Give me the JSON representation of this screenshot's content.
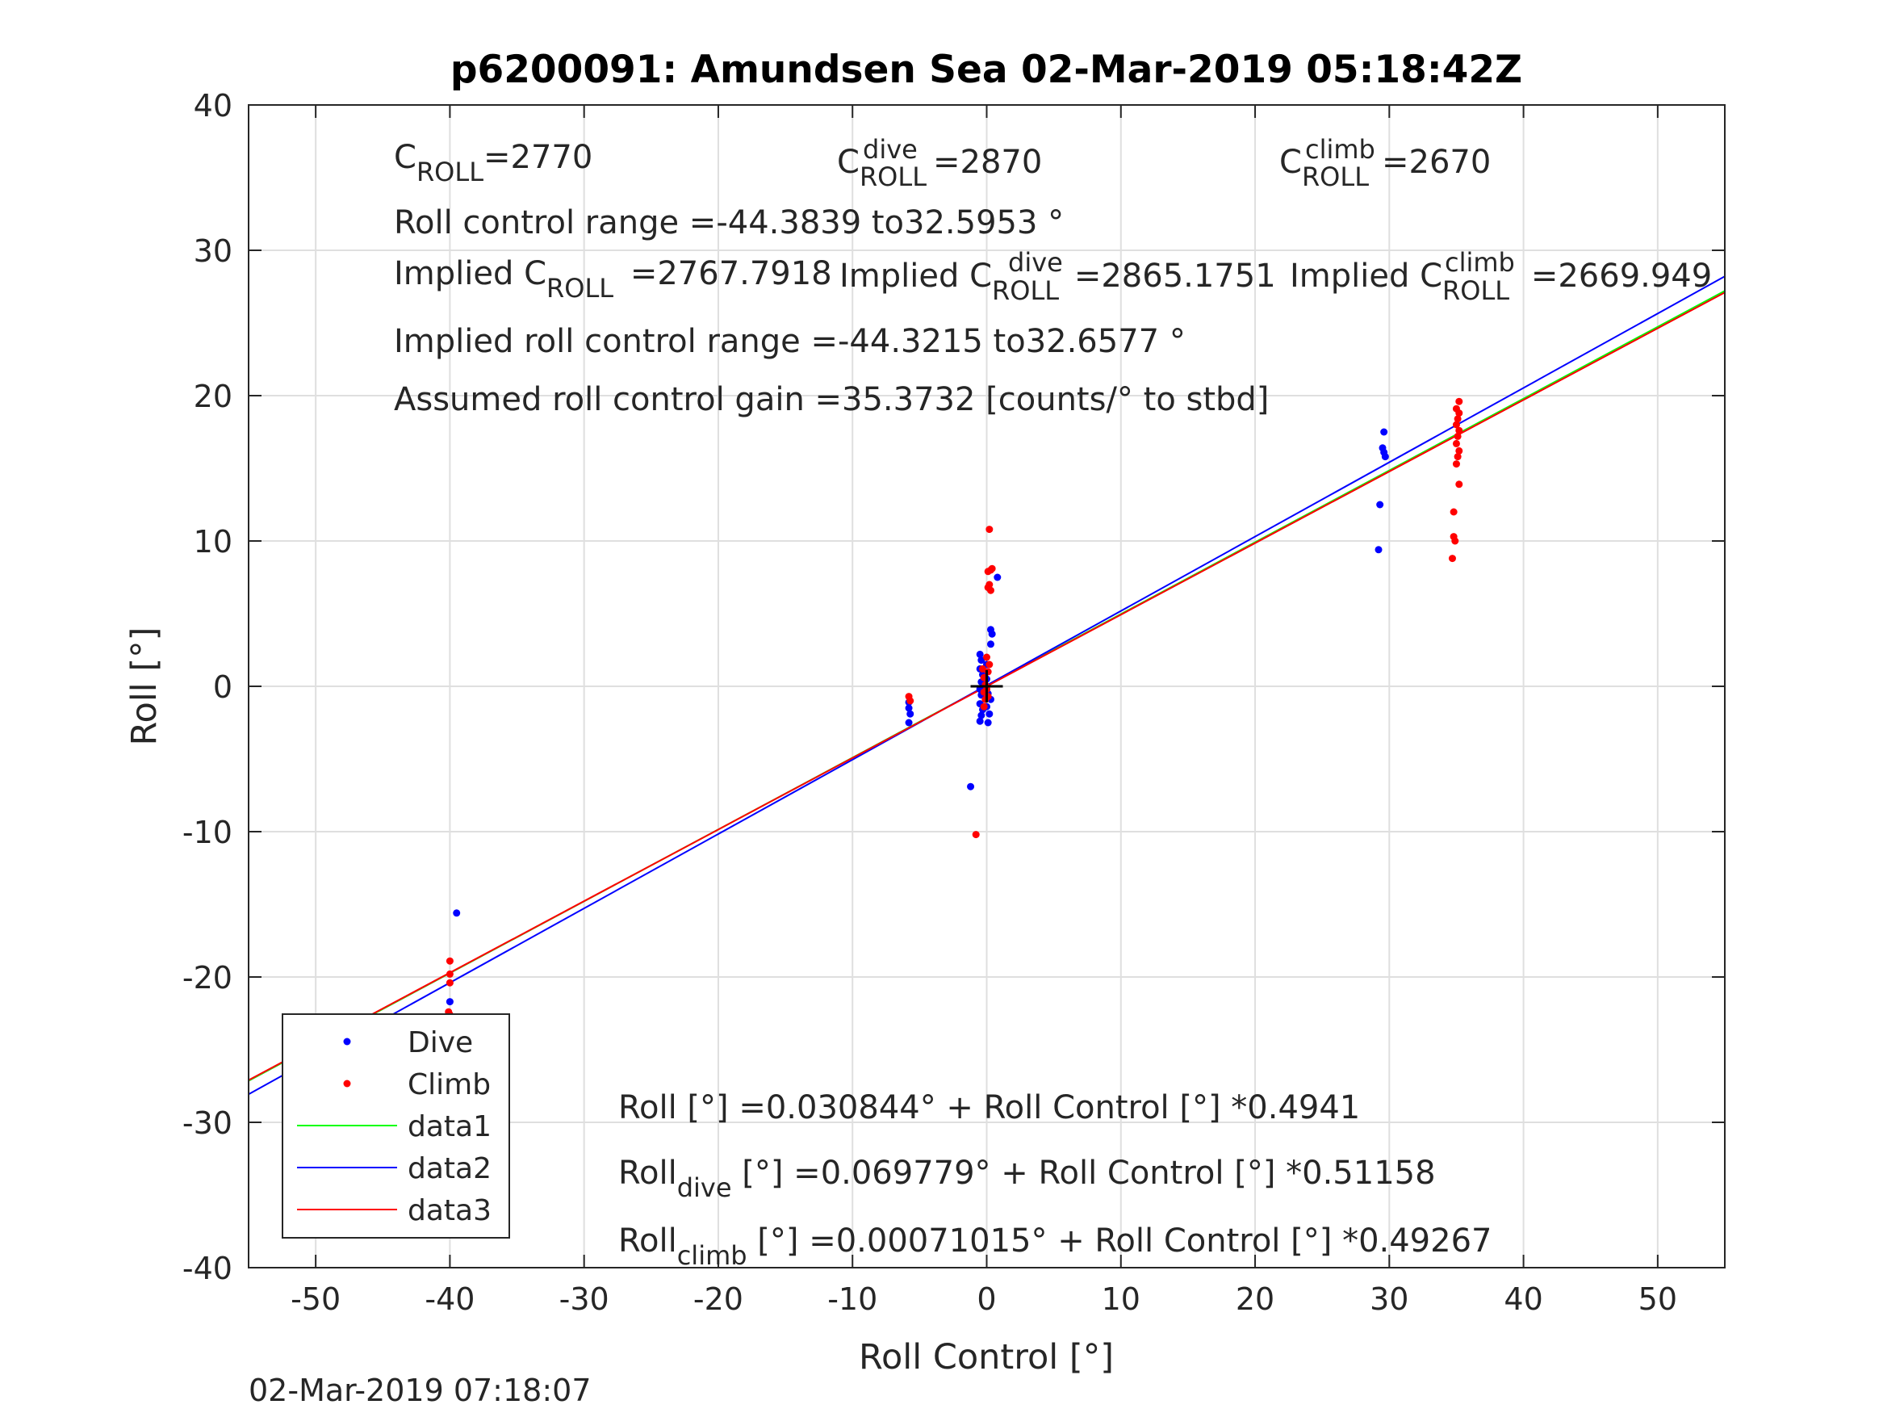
{
  "chart_data": {
    "type": "scatter",
    "title": "p6200091: Amundsen Sea 02-Mar-2019 05:18:42Z",
    "xlabel": "Roll Control [°]",
    "ylabel": "Roll [°]",
    "xlim": [
      -55,
      55
    ],
    "ylim": [
      -40,
      40
    ],
    "xticks": [
      -50,
      -40,
      -30,
      -20,
      -10,
      0,
      10,
      20,
      30,
      40,
      50
    ],
    "yticks": [
      -40,
      -30,
      -20,
      -10,
      0,
      10,
      20,
      30,
      40
    ],
    "grid": true,
    "legend_position": "bottom-left",
    "footer": "02-Mar-2019 07:18:07",
    "series": [
      {
        "name": "Dive",
        "kind": "points",
        "color": "#0000ff",
        "points": [
          [
            -47.8,
            -24.1
          ],
          [
            -40.0,
            -21.7
          ],
          [
            -40.0,
            -22.8
          ],
          [
            -39.5,
            -15.6
          ],
          [
            -5.8,
            -1.1
          ],
          [
            -5.8,
            -1.5
          ],
          [
            -5.7,
            -1.9
          ],
          [
            -5.8,
            -2.5
          ],
          [
            -1.2,
            -6.9
          ],
          [
            -0.5,
            2.2
          ],
          [
            -0.4,
            1.8
          ],
          [
            -0.5,
            1.2
          ],
          [
            -0.3,
            0.8
          ],
          [
            -0.4,
            0.3
          ],
          [
            -0.5,
            -0.2
          ],
          [
            -0.4,
            -0.6
          ],
          [
            -0.5,
            -1.2
          ],
          [
            -0.3,
            -1.6
          ],
          [
            -0.4,
            -2.0
          ],
          [
            -0.5,
            -2.4
          ],
          [
            0.0,
            1.5
          ],
          [
            0.0,
            0.5
          ],
          [
            0.1,
            -0.5
          ],
          [
            0.0,
            -1.4
          ],
          [
            0.1,
            -2.5
          ],
          [
            0.3,
            3.9
          ],
          [
            0.4,
            3.6
          ],
          [
            0.3,
            2.9
          ],
          [
            0.2,
            -1.9
          ],
          [
            0.3,
            -0.9
          ],
          [
            0.8,
            7.5
          ],
          [
            29.2,
            9.4
          ],
          [
            29.3,
            12.5
          ],
          [
            29.5,
            16.4
          ],
          [
            29.6,
            16.1
          ],
          [
            29.7,
            15.8
          ],
          [
            29.6,
            17.5
          ]
        ]
      },
      {
        "name": "Climb",
        "kind": "points",
        "color": "#ff0000",
        "points": [
          [
            -40.0,
            -18.9
          ],
          [
            -40.0,
            -19.8
          ],
          [
            -40.0,
            -20.4
          ],
          [
            -40.1,
            -22.4
          ],
          [
            -40.0,
            -22.6
          ],
          [
            -5.8,
            -0.7
          ],
          [
            -5.7,
            -1.0
          ],
          [
            -0.8,
            -10.2
          ],
          [
            -0.3,
            1.2
          ],
          [
            -0.2,
            0.6
          ],
          [
            -0.1,
            0.1
          ],
          [
            -0.2,
            -0.4
          ],
          [
            -0.1,
            -0.9
          ],
          [
            -0.2,
            -1.4
          ],
          [
            0.0,
            2.0
          ],
          [
            0.1,
            1.0
          ],
          [
            0.0,
            -0.2
          ],
          [
            0.1,
            -0.7
          ],
          [
            0.2,
            1.5
          ],
          [
            0.1,
            6.8
          ],
          [
            0.2,
            7.0
          ],
          [
            0.3,
            6.6
          ],
          [
            0.1,
            7.9
          ],
          [
            0.3,
            8.0
          ],
          [
            0.4,
            8.1
          ],
          [
            0.2,
            10.8
          ],
          [
            34.7,
            8.8
          ],
          [
            34.8,
            10.3
          ],
          [
            34.9,
            10.0
          ],
          [
            34.8,
            12.0
          ],
          [
            35.2,
            13.9
          ],
          [
            35.0,
            15.3
          ],
          [
            35.1,
            15.8
          ],
          [
            35.2,
            16.2
          ],
          [
            35.0,
            16.7
          ],
          [
            35.1,
            17.2
          ],
          [
            35.2,
            17.6
          ],
          [
            35.0,
            18.0
          ],
          [
            35.1,
            18.4
          ],
          [
            35.2,
            18.8
          ],
          [
            35.0,
            19.1
          ],
          [
            35.2,
            19.6
          ]
        ]
      },
      {
        "name": "data1",
        "kind": "line",
        "color": "#00ff00",
        "intercept": 0.030844,
        "slope": 0.4941
      },
      {
        "name": "data2",
        "kind": "line",
        "color": "#0000ff",
        "intercept": 0.069779,
        "slope": 0.51158
      },
      {
        "name": "data3",
        "kind": "line",
        "color": "#ff0000",
        "intercept": 0.00071015,
        "slope": 0.49267
      }
    ],
    "legend": [
      "Dive",
      "Climb",
      "data1",
      "data2",
      "data3"
    ],
    "annotations": {
      "c_roll_label": "C",
      "c_roll_sub": "ROLL",
      "c_roll_val": "=2770",
      "c_dive_label": "C",
      "c_dive_sup": "dive",
      "c_dive_sub": "ROLL",
      "c_dive_val": "=2870",
      "c_climb_label": "C",
      "c_climb_sup": "climb",
      "c_climb_sub": "ROLL",
      "c_climb_val": "=2670",
      "range": "Roll control range =-44.3839 to32.5953 °",
      "implied_c_label": "Implied C",
      "implied_c_sub": "ROLL",
      "implied_c_val": " =2767.7918",
      "implied_dive_label": "Implied C",
      "implied_dive_sup": "dive",
      "implied_dive_sub": "ROLL",
      "implied_dive_val": " =2865.1751",
      "implied_climb_label": "Implied C",
      "implied_climb_sup": "climb",
      "implied_climb_sub": "ROLL",
      "implied_climb_val": " =2669.949",
      "implied_range": "Implied roll control range =-44.3215 to32.6577 °",
      "gain": "Assumed roll control gain =35.3732 [counts/° to stbd]",
      "fit_all": "Roll [°] =0.030844° + Roll Control [°] *0.4941",
      "fit_dive_label": "Roll",
      "fit_dive_sub": "dive",
      "fit_dive_rest": " [°] =0.069779° + Roll Control [°] *0.51158",
      "fit_climb_label": "Roll",
      "fit_climb_sub": "climb",
      "fit_climb_rest": " [°] =0.00071015° + Roll Control [°] *0.49267"
    },
    "center_marker": [
      0,
      0
    ]
  }
}
